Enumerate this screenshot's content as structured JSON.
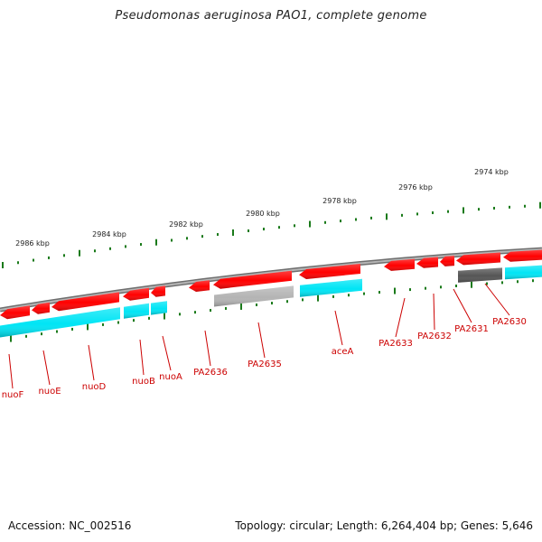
{
  "title": "Pseudomonas aeruginosa PAO1, complete genome",
  "footer": {
    "accession": "Accession: NC_002516",
    "topology": "Topology: circular; Length: 6,264,404 bp; Genes: 5,646"
  },
  "colors": {
    "gene_red": "#ff0000",
    "gene_cyan": "#00e5f5",
    "gene_gray": "#b4b4b4",
    "gene_dark_gray": "#555555",
    "backbone": "#8a8a8a",
    "tick_green": "#1a7a1a",
    "label_red": "#cc0000"
  },
  "tick_labels": [
    "2986 kbp",
    "2984 kbp",
    "2982 kbp",
    "2980 kbp",
    "2978 kbp",
    "2976 kbp",
    "2974 kbp"
  ],
  "gene_labels": [
    "nuoF",
    "nuoE",
    "nuoD",
    "nuoB",
    "nuoA",
    "PA2636",
    "PA2635",
    "aceA",
    "PA2633",
    "PA2632",
    "PA2631",
    "PA2630"
  ]
}
